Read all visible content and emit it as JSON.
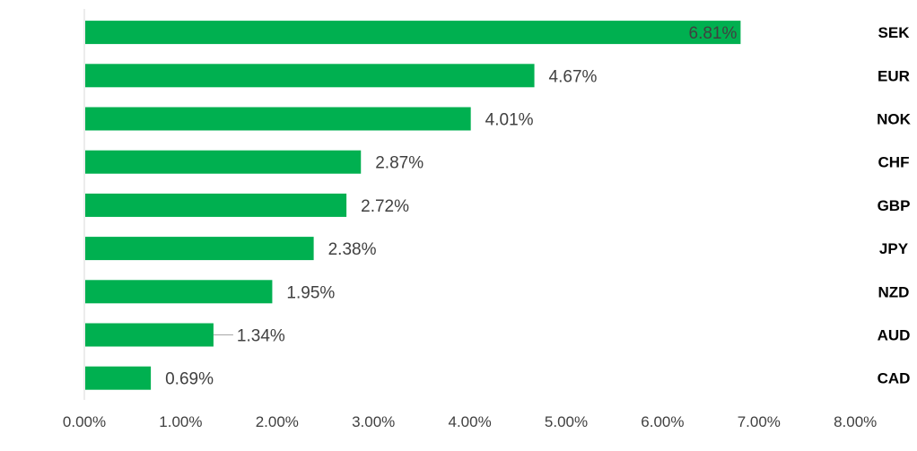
{
  "chart_data": {
    "type": "bar",
    "orientation": "horizontal",
    "categories": [
      "SEK",
      "EUR",
      "NOK",
      "CHF",
      "GBP",
      "JPY",
      "NZD",
      "AUD",
      "CAD"
    ],
    "values": [
      6.81,
      4.67,
      4.01,
      2.87,
      2.72,
      2.38,
      1.95,
      1.34,
      0.69
    ],
    "data_labels": [
      "6.81%",
      "4.67%",
      "4.01%",
      "2.87%",
      "2.72%",
      "2.38%",
      "1.95%",
      "1.34%",
      "0.69%"
    ],
    "xticks": [
      "0.00%",
      "1.00%",
      "2.00%",
      "3.00%",
      "4.00%",
      "5.00%",
      "6.00%",
      "7.00%",
      "8.00%"
    ],
    "xlim": [
      0,
      8
    ],
    "category_axis_position": "right",
    "grid": false,
    "legend": "none",
    "bar_color": "#00b050"
  }
}
